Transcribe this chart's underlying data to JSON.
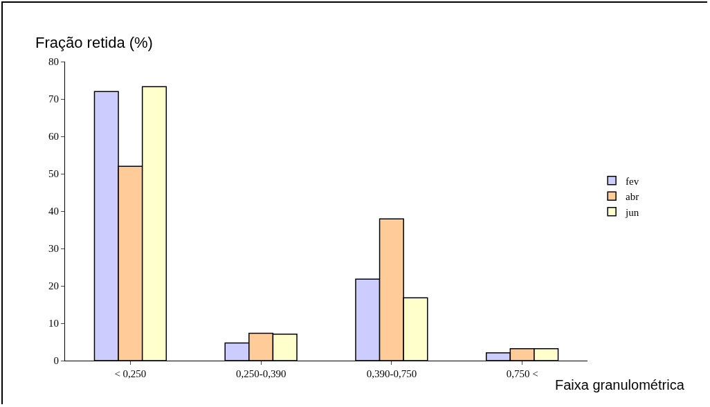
{
  "chart_data": {
    "type": "bar",
    "ylabel": "Fração retida (%)",
    "xlabel": "Faixa granulométrica",
    "categories": [
      "< 0,250",
      "0,250-0,390",
      "0,390-0,750",
      "0,750 <"
    ],
    "series": [
      {
        "name": "fev",
        "color": "#ccccff",
        "values": [
          72,
          4.7,
          21.8,
          2.1
        ]
      },
      {
        "name": "abr",
        "color": "#ffcc99",
        "values": [
          52,
          7.3,
          37.9,
          3.2
        ]
      },
      {
        "name": "jun",
        "color": "#ffffcc",
        "values": [
          73.3,
          7.1,
          16.8,
          3.2
        ]
      }
    ],
    "ylim": [
      0,
      80
    ],
    "yticks": [
      0,
      10,
      20,
      30,
      40,
      50,
      60,
      70,
      80
    ],
    "grid": false,
    "legend": "right"
  }
}
